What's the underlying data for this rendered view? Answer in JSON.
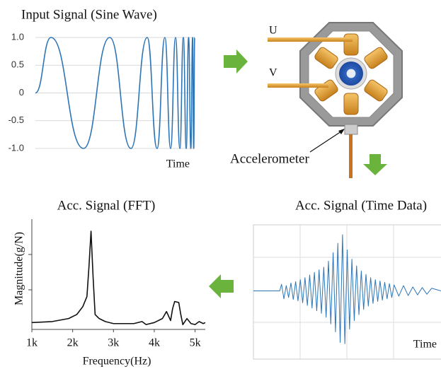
{
  "chart_data": [
    {
      "type": "line",
      "title": "Input Signal (Sine Wave)",
      "x_label": "Time",
      "x": [
        0,
        9.8,
        30.2,
        46.7,
        60,
        70.2,
        76.4,
        81.3,
        84.9,
        88,
        90.7,
        92.9,
        94.7,
        96.2,
        97.6,
        98.7,
        99.4,
        100
      ],
      "values": [
        0,
        1,
        -1,
        1,
        -1,
        1,
        -1,
        1,
        -1,
        1,
        -1,
        1,
        -1,
        1,
        -1,
        1,
        -1,
        1
      ],
      "xlim": [
        0,
        100
      ],
      "ylim": [
        -1,
        1
      ],
      "yticks": [
        {
          "value": 1,
          "label": "1.0"
        },
        0.5,
        0,
        -0.5,
        {
          "value": -1,
          "label": "-1.0"
        }
      ],
      "grid": true,
      "color": "#2e75b6"
    },
    {
      "type": "line",
      "title": "Acc. Signal (FFT)",
      "x_label": "Frequency(Hz)",
      "y_label": "Magnitude(g/N)",
      "x": [
        1000,
        1500,
        1900,
        2100,
        2250,
        2350,
        2400,
        2450,
        2500,
        2550,
        2650,
        2800,
        3000,
        3500,
        3700,
        3800,
        4000,
        4200,
        4300,
        4400,
        4450,
        4500,
        4600,
        4650,
        4700,
        4800,
        4900,
        5000,
        5100,
        5200,
        5250
      ],
      "values": [
        0.04,
        0.05,
        0.08,
        0.12,
        0.2,
        0.3,
        0.6,
        0.95,
        0.5,
        0.12,
        0.08,
        0.05,
        0.03,
        0.03,
        0.05,
        0.02,
        0.04,
        0.08,
        0.15,
        0.06,
        0.18,
        0.25,
        0.24,
        0.12,
        0.02,
        0.08,
        0.03,
        0.02,
        0.05,
        0.03,
        0.04
      ],
      "xlim": [
        1000,
        5250
      ],
      "ylim": [
        0,
        1
      ],
      "xticks": [
        {
          "value": 1000,
          "label": "1k"
        },
        {
          "value": 2000,
          "label": "2k"
        },
        {
          "value": 3000,
          "label": "3k"
        },
        {
          "value": 4000,
          "label": "4k"
        },
        {
          "value": 5000,
          "label": "5k"
        }
      ],
      "color": "#111111"
    },
    {
      "type": "line",
      "title": "Acc. Signal (Time Data)",
      "x_label": "Time",
      "x": [
        0,
        14,
        15,
        16.25,
        17.5,
        18.75,
        20,
        21.25,
        22.5,
        23.75,
        25,
        26.25,
        27.5,
        28.75,
        30,
        31.25,
        32.5,
        33.75,
        35,
        36.25,
        37.5,
        38.75,
        40,
        41.25,
        42.5,
        43.75,
        45,
        46.25,
        47.5,
        48.75,
        50,
        51.25,
        52.5,
        53.75,
        55,
        56.25,
        57.5,
        58.75,
        60,
        61.25,
        62.5,
        63.75,
        65,
        66.25,
        67.5,
        68.75,
        70,
        71.25,
        72.5,
        73.75,
        75,
        77.5,
        80,
        82.5,
        85,
        87.5,
        90,
        92.5,
        95,
        100
      ],
      "values": [
        0,
        0,
        0.1,
        -0.12,
        0.08,
        -0.1,
        0.12,
        -0.13,
        0.14,
        -0.15,
        0.17,
        -0.18,
        0.2,
        -0.22,
        0.24,
        -0.26,
        0.28,
        -0.3,
        0.32,
        -0.34,
        0.36,
        -0.4,
        0.45,
        -0.5,
        0.58,
        -0.62,
        0.72,
        -0.78,
        0.85,
        -0.8,
        0.62,
        -0.58,
        0.48,
        -0.45,
        0.38,
        -0.36,
        0.3,
        -0.28,
        0.25,
        -0.23,
        0.2,
        -0.19,
        0.17,
        -0.16,
        0.15,
        -0.14,
        0.13,
        -0.12,
        0.11,
        -0.1,
        0.09,
        -0.08,
        0.08,
        -0.07,
        0.06,
        -0.06,
        0.05,
        -0.05,
        0.04,
        0
      ],
      "xlim": [
        0,
        100
      ],
      "ylim": [
        -1,
        1
      ],
      "color": "#2e75b6"
    }
  ],
  "motor_labels": [
    "U",
    "V",
    "Accelerometer"
  ]
}
